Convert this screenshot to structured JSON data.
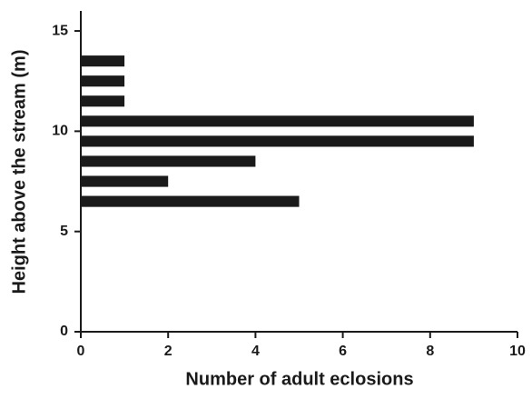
{
  "chart_data": {
    "type": "bar",
    "orientation": "horizontal",
    "xlabel": "Number of adult eclosions",
    "ylabel": "Height above the stream (m)",
    "y": [
      6.5,
      7.5,
      8.5,
      9.5,
      10.5,
      11.5,
      12.5,
      13.5
    ],
    "values": [
      5,
      2,
      4,
      9,
      9,
      1,
      1,
      1
    ],
    "color": "#1a1a1a",
    "xlim": [
      0,
      10
    ],
    "xticks": [
      0,
      2,
      4,
      6,
      8,
      10
    ],
    "ylim": [
      0,
      16
    ],
    "yticks": [
      0,
      5,
      10,
      15
    ],
    "grid": false
  }
}
